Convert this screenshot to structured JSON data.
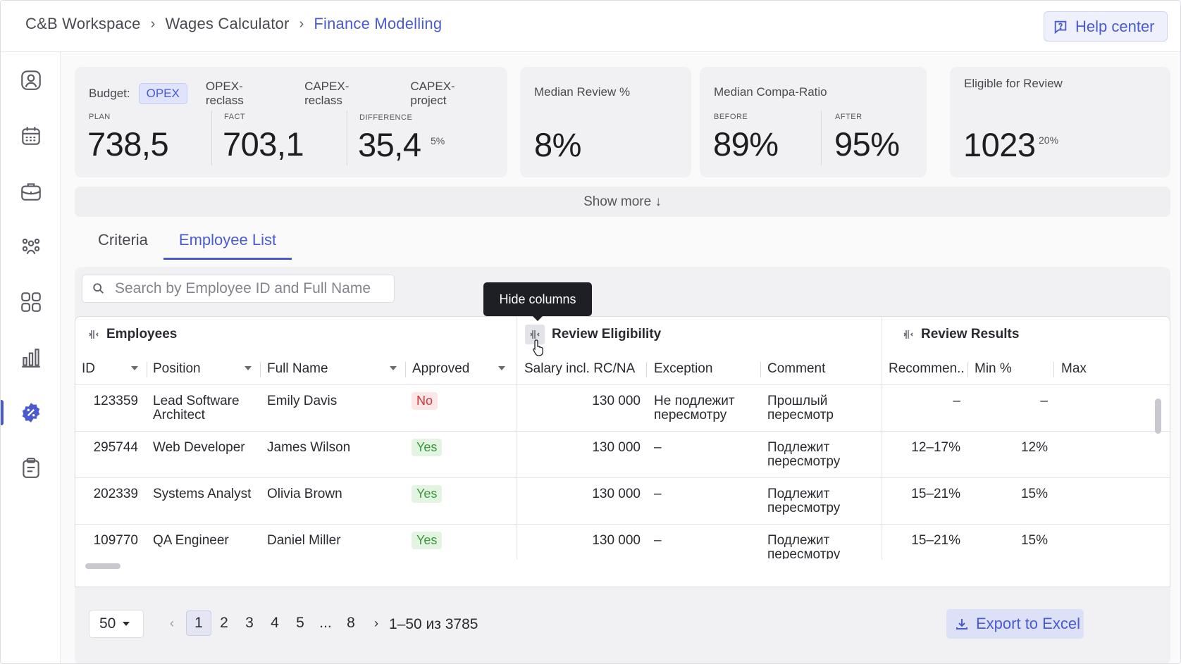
{
  "breadcrumb": {
    "items": [
      "C&B Workspace",
      "Wages Calculator",
      "Finance Modelling"
    ]
  },
  "header": {
    "help_label": "Help center"
  },
  "sidebar": {
    "items": [
      {
        "icon": "user-icon"
      },
      {
        "icon": "calendar-icon"
      },
      {
        "icon": "briefcase-icon"
      },
      {
        "icon": "team-icon"
      },
      {
        "icon": "apps-icon"
      },
      {
        "icon": "chart-icon"
      },
      {
        "icon": "discount-badge-icon",
        "active": true
      },
      {
        "icon": "clipboard-icon"
      }
    ]
  },
  "budget": {
    "label": "Budget:",
    "chips": [
      "OPEX",
      "OPEX-reclass",
      "CAPEX-reclass",
      "CAPEX-project"
    ],
    "selected": "OPEX",
    "plan_label": "PLAN",
    "plan_value": "738,5",
    "fact_label": "FACT",
    "fact_value": "703,1",
    "diff_label": "DIFFERENCE",
    "diff_value": "35,4",
    "diff_pct": "5%"
  },
  "median_review": {
    "title": "Median Review %",
    "value": "8%"
  },
  "compa_ratio": {
    "title": "Median Compa-Ratio",
    "before_label": "BEFORE",
    "before_value": "89%",
    "after_label": "AFTER",
    "after_value": "95%"
  },
  "eligible": {
    "title": "Eligible for Review",
    "value": "1023",
    "pct": "20%"
  },
  "show_more": "Show more ↓",
  "tabs": [
    "Criteria",
    "Employee List"
  ],
  "active_tab": "Employee List",
  "search": {
    "placeholder": "Search by Employee ID and Full Name"
  },
  "tooltip": "Hide columns",
  "groups": {
    "employees": "Employees",
    "eligibility": "Review Eligibility",
    "results": "Review Results"
  },
  "columns": {
    "id": "ID",
    "position": "Position",
    "full_name": "Full Name",
    "approved": "Approved",
    "salary": "Salary incl. RC/NA",
    "exception": "Exception",
    "comment": "Comment",
    "recommended": "Recommen..",
    "min": "Min %",
    "max": "Max"
  },
  "rows": [
    {
      "id": "123359",
      "position": "Lead Software Architect",
      "name": "Emily Davis",
      "approved": "No",
      "salary": "130 000",
      "exception": "Не подлежит пересмотру",
      "comment": "Прошлый пересмотр",
      "recommended": "–",
      "min": "–"
    },
    {
      "id": "295744",
      "position": "Web Developer",
      "name": "James Wilson",
      "approved": "Yes",
      "salary": "130 000",
      "exception": "–",
      "comment": "Подлежит пересмотру",
      "recommended": "12–17%",
      "min": "12%"
    },
    {
      "id": "202339",
      "position": "Systems Analyst",
      "name": "Olivia Brown",
      "approved": "Yes",
      "salary": "130 000",
      "exception": "–",
      "comment": "Подлежит пересмотру",
      "recommended": "15–21%",
      "min": "15%"
    },
    {
      "id": "109770",
      "position": "QA Engineer",
      "name": "Daniel Miller",
      "approved": "Yes",
      "salary": "130 000",
      "exception": "–",
      "comment": "Подлежит пересмотру",
      "recommended": "15–21%",
      "min": "15%"
    }
  ],
  "pagination": {
    "page_size": "50",
    "prev": "‹",
    "next": "›",
    "pages": [
      "1",
      "2",
      "3",
      "4",
      "5",
      "...",
      "8"
    ],
    "current": "1",
    "range": "1–50 из 3785"
  },
  "export_label": "Export to Excel",
  "colors": {
    "accent": "#4a5bd0",
    "no": "#d2363a",
    "yes": "#3a9a3a"
  }
}
